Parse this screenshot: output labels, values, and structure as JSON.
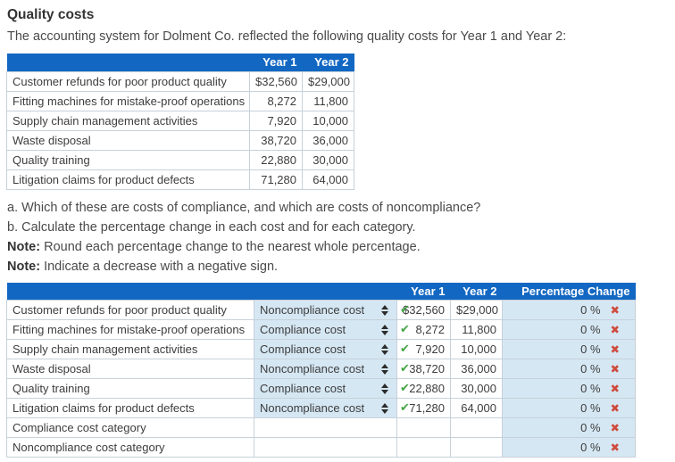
{
  "page": {
    "title": "Quality costs",
    "intro": "The accounting system for Dolment Co. reflected the following quality costs for Year 1 and Year 2:",
    "question_a": "a. Which of these are costs of compliance, and which are costs of noncompliance?",
    "question_b": "b. Calculate the percentage change in each cost and for each category.",
    "note1_label": "Note:",
    "note1_text": "Round each percentage change to the nearest whole percentage.",
    "note2_label": "Note:",
    "note2_text": "Indicate a decrease with a negative sign."
  },
  "colors": {
    "header_blue": "#1267c2",
    "input_light_blue": "#d5e7f3",
    "check_green": "#44a544",
    "x_red": "#cf4a3d"
  },
  "icons": {
    "check": "✔",
    "x": "✖"
  },
  "table1": {
    "headers": {
      "year1": "Year 1",
      "year2": "Year 2"
    },
    "rows": [
      {
        "item": "Customer refunds for poor product quality",
        "y1": "$32,560",
        "y2": "$29,000"
      },
      {
        "item": "Fitting machines for mistake-proof operations",
        "y1": "8,272",
        "y2": "11,800"
      },
      {
        "item": "Supply chain management activities",
        "y1": "7,920",
        "y2": "10,000"
      },
      {
        "item": "Waste disposal",
        "y1": "38,720",
        "y2": "36,000"
      },
      {
        "item": "Quality training",
        "y1": "22,880",
        "y2": "30,000"
      },
      {
        "item": "Litigation claims for product defects",
        "y1": "71,280",
        "y2": "64,000"
      }
    ]
  },
  "table2": {
    "headers": {
      "year1": "Year 1",
      "year2": "Year 2",
      "pct": "Percentage Change"
    },
    "rows": [
      {
        "item": "Customer refunds for poor product quality",
        "dropdown": "Noncompliance cost",
        "y1": "$32,560",
        "y2": "$29,000",
        "pct": "0 %"
      },
      {
        "item": "Fitting machines for mistake-proof operations",
        "dropdown": "Compliance cost",
        "y1": "8,272",
        "y2": "11,800",
        "pct": "0 %"
      },
      {
        "item": "Supply chain management activities",
        "dropdown": "Compliance cost",
        "y1": "7,920",
        "y2": "10,000",
        "pct": "0 %"
      },
      {
        "item": "Waste disposal",
        "dropdown": "Noncompliance cost",
        "y1": "38,720",
        "y2": "36,000",
        "pct": "0 %"
      },
      {
        "item": "Quality training",
        "dropdown": "Compliance cost",
        "y1": "22,880",
        "y2": "30,000",
        "pct": "0 %"
      },
      {
        "item": "Litigation claims for product defects",
        "dropdown": "Noncompliance cost",
        "y1": "71,280",
        "y2": "64,000",
        "pct": "0 %"
      },
      {
        "item": "Compliance cost category",
        "pct": "0 %"
      },
      {
        "item": "Noncompliance cost category",
        "pct": "0 %"
      }
    ]
  }
}
